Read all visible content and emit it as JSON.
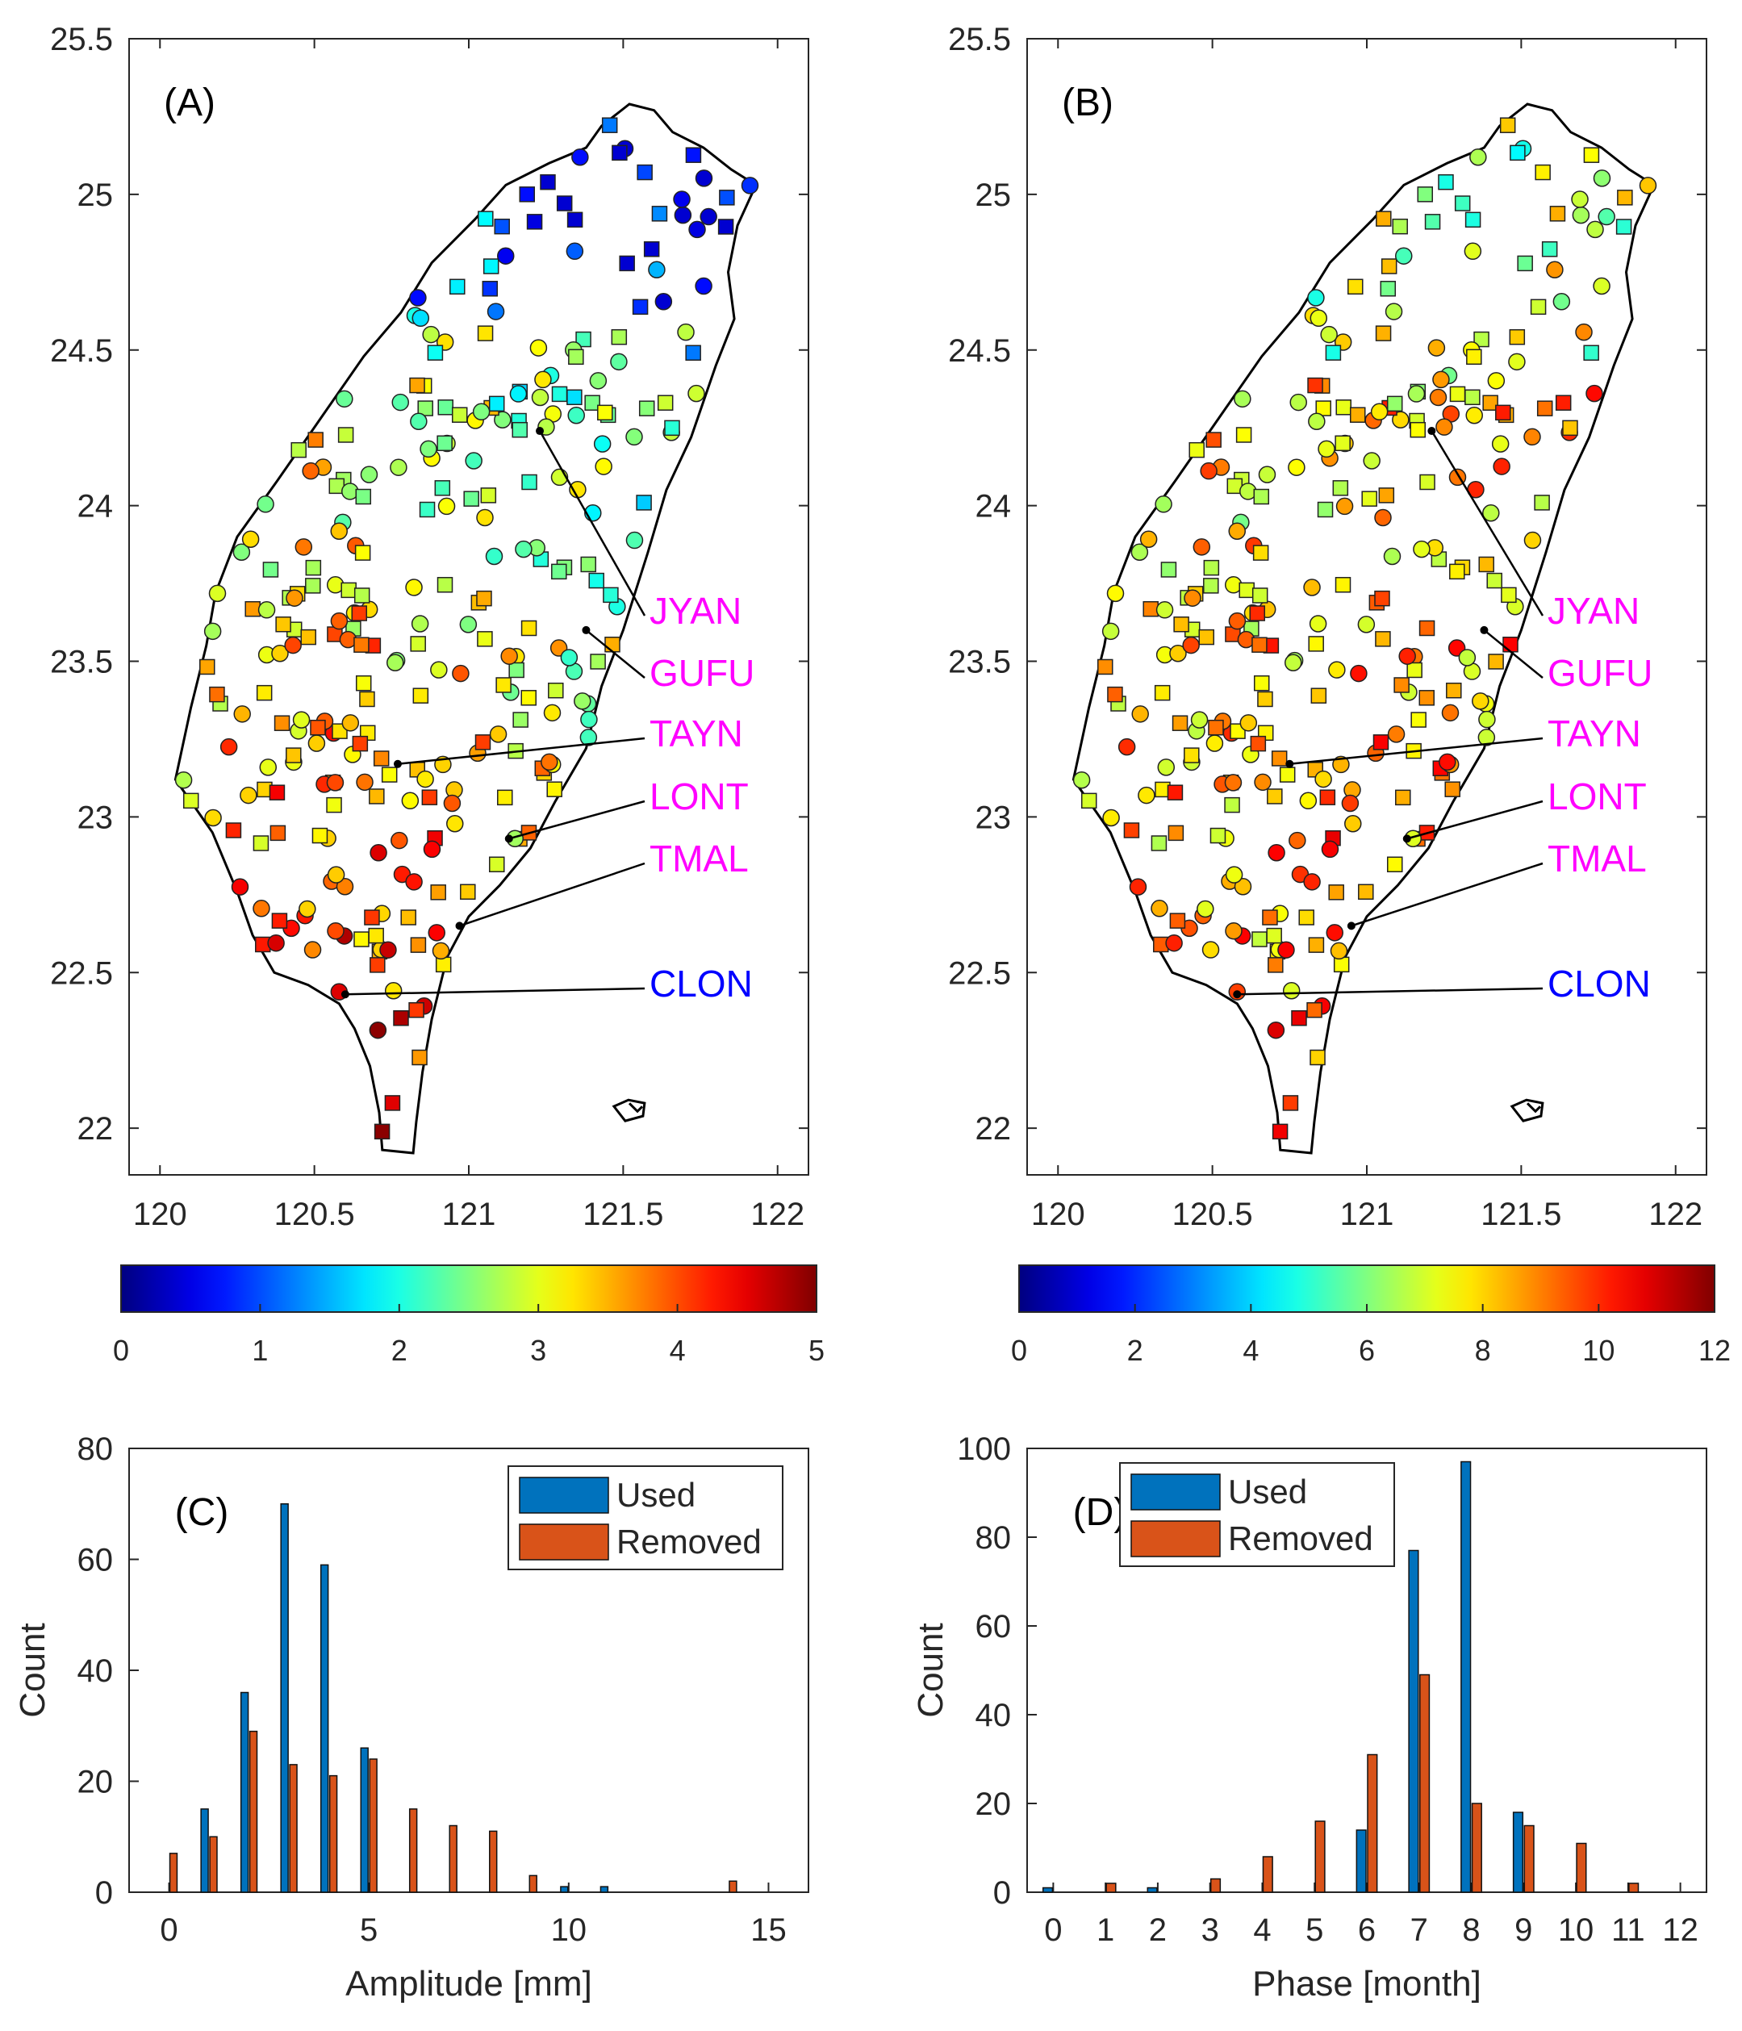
{
  "chart_data": [
    {
      "panel": "A",
      "type": "scatter",
      "title": "(A)",
      "xlabel": "",
      "ylabel": "",
      "xlim": [
        119.9,
        122.1
      ],
      "ylim": [
        21.85,
        25.5
      ],
      "xticks": [
        120,
        120.5,
        121,
        121.5,
        122
      ],
      "xtick_labels": [
        "120",
        "120.5",
        "121",
        "121.5",
        "122"
      ],
      "yticks": [
        22,
        22.5,
        23,
        23.5,
        24,
        24.5,
        25,
        25.5
      ],
      "ytick_labels": [
        "22",
        "22.5",
        "23",
        "23.5",
        "24",
        "24.5",
        "25",
        "25.5"
      ],
      "stations": [
        {
          "name": "JYAN",
          "lon": 121.23,
          "lat": 24.24,
          "color": "#ff00ff"
        },
        {
          "name": "GUFU",
          "lon": 121.38,
          "lat": 23.6,
          "color": "#ff00ff"
        },
        {
          "name": "TAYN",
          "lon": 120.77,
          "lat": 23.17,
          "color": "#ff00ff"
        },
        {
          "name": "LONT",
          "lon": 121.13,
          "lat": 22.93,
          "color": "#ff00ff"
        },
        {
          "name": "TMAL",
          "lon": 120.97,
          "lat": 22.65,
          "color": "#ff00ff"
        },
        {
          "name": "CLON",
          "lon": 120.6,
          "lat": 22.43,
          "color": "#0000ff"
        }
      ],
      "colorbar": {
        "min": 0,
        "max": 5,
        "ticks": [
          "0",
          "1",
          "2",
          "3",
          "4",
          "5"
        ]
      }
    },
    {
      "panel": "B",
      "type": "scatter",
      "title": "(B)",
      "xlabel": "",
      "ylabel": "",
      "xlim": [
        119.9,
        122.1
      ],
      "ylim": [
        21.85,
        25.5
      ],
      "xticks": [
        120,
        120.5,
        121,
        121.5,
        122
      ],
      "xtick_labels": [
        "120",
        "120.5",
        "121",
        "121.5",
        "122"
      ],
      "yticks": [
        22,
        22.5,
        23,
        23.5,
        24,
        24.5,
        25,
        25.5
      ],
      "ytick_labels": [
        "22",
        "22.5",
        "23",
        "23.5",
        "24",
        "24.5",
        "25",
        "25.5"
      ],
      "stations": [
        {
          "name": "JYAN",
          "lon": 121.21,
          "lat": 24.24,
          "color": "#ff00ff"
        },
        {
          "name": "GUFU",
          "lon": 121.38,
          "lat": 23.6,
          "color": "#ff00ff"
        },
        {
          "name": "TAYN",
          "lon": 120.75,
          "lat": 23.17,
          "color": "#ff00ff"
        },
        {
          "name": "LONT",
          "lon": 121.13,
          "lat": 22.93,
          "color": "#ff00ff"
        },
        {
          "name": "TMAL",
          "lon": 120.95,
          "lat": 22.65,
          "color": "#ff00ff"
        },
        {
          "name": "CLON",
          "lon": 120.58,
          "lat": 22.43,
          "color": "#0000ff"
        }
      ],
      "colorbar": {
        "min": 0,
        "max": 12,
        "ticks": [
          "0",
          "2",
          "4",
          "6",
          "8",
          "10",
          "12"
        ]
      }
    },
    {
      "panel": "C",
      "type": "bar",
      "title": "(C)",
      "xlabel": "Amplitude [mm]",
      "ylabel": "Count",
      "xlim": [
        -1,
        16
      ],
      "ylim": [
        0,
        80
      ],
      "xticks": [
        0,
        5,
        10,
        15
      ],
      "xtick_labels": [
        "0",
        "5",
        "10",
        "15"
      ],
      "yticks": [
        0,
        20,
        40,
        60,
        80
      ],
      "ytick_labels": [
        "0",
        "20",
        "40",
        "60",
        "80"
      ],
      "categories": [
        0,
        1,
        2,
        3,
        4,
        5,
        6,
        7,
        8,
        9,
        10,
        11,
        12,
        13,
        14
      ],
      "series": [
        {
          "name": "Used",
          "color": "#0072bd",
          "values": [
            0,
            15,
            36,
            70,
            59,
            26,
            0,
            0,
            0,
            0,
            1,
            1,
            0,
            0,
            0
          ]
        },
        {
          "name": "Removed",
          "color": "#d95319",
          "values": [
            7,
            10,
            29,
            23,
            21,
            24,
            15,
            12,
            11,
            3,
            0,
            0,
            0,
            0,
            2
          ]
        }
      ],
      "legend": {
        "position": "top-right",
        "items": [
          "Used",
          "Removed"
        ]
      }
    },
    {
      "panel": "D",
      "type": "bar",
      "title": "(D)",
      "xlabel": "Phase [month]",
      "ylabel": "Count",
      "xlim": [
        -0.5,
        12.5
      ],
      "ylim": [
        0,
        100
      ],
      "xticks": [
        0,
        1,
        2,
        3,
        4,
        5,
        6,
        7,
        8,
        9,
        10,
        11,
        12
      ],
      "xtick_labels": [
        "0",
        "1",
        "2",
        "3",
        "4",
        "5",
        "6",
        "7",
        "8",
        "9",
        "10",
        "11",
        "12"
      ],
      "yticks": [
        0,
        20,
        40,
        60,
        80,
        100
      ],
      "ytick_labels": [
        "0",
        "20",
        "40",
        "60",
        "80",
        "100"
      ],
      "categories": [
        0,
        1,
        2,
        3,
        4,
        5,
        6,
        7,
        8,
        9,
        10,
        11
      ],
      "series": [
        {
          "name": "Used",
          "color": "#0072bd",
          "values": [
            1,
            0,
            1,
            0,
            0,
            0,
            14,
            77,
            97,
            18,
            0,
            0
          ]
        },
        {
          "name": "Removed",
          "color": "#d95319",
          "values": [
            0,
            2,
            0,
            3,
            8,
            16,
            31,
            49,
            20,
            15,
            11,
            2
          ]
        }
      ],
      "legend": {
        "position": "top-left",
        "items": [
          "Used",
          "Removed"
        ]
      }
    }
  ]
}
